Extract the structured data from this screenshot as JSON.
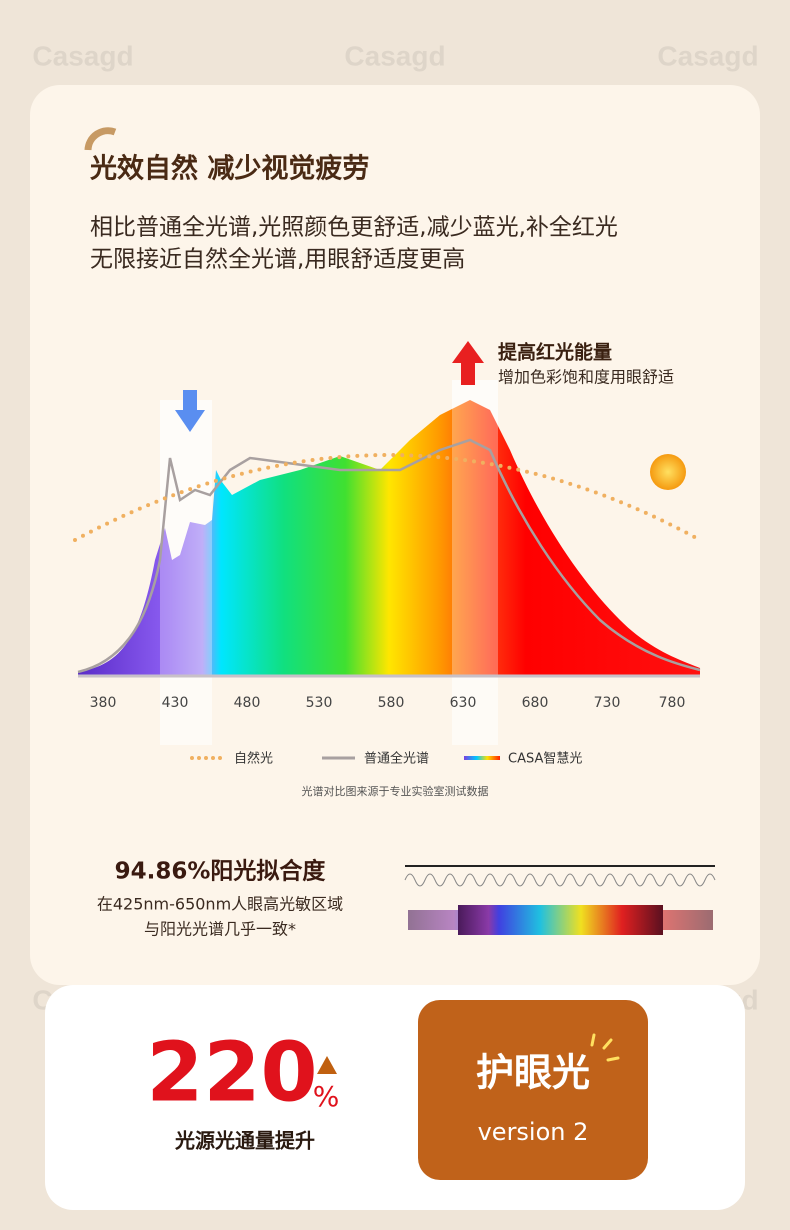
{
  "watermark": "Casagd",
  "header": {
    "title": "光效自然 减少视觉疲劳",
    "subtitle": [
      "相比普通全光谱,光照颜色更舒适,减少蓝光,补全红光",
      "无限接近自然全光谱,用眼舒适度更高"
    ]
  },
  "spectrum": {
    "callout": {
      "title": "提高红光能量",
      "text": "增加色彩饱和度用眼舒适"
    },
    "x_labels": [
      380,
      430,
      480,
      530,
      580,
      630,
      680,
      730,
      780
    ],
    "legend": [
      "自然光",
      "普通全光谱",
      "CASA智慧光"
    ],
    "note": "光谱对比图来源于专业实验室测试数据"
  },
  "fit": {
    "title": "94.86%阳光拟合度",
    "lines": [
      "在425nm-650nm人眼高光敏区域",
      "与阳光光谱几乎一致*"
    ]
  },
  "stat": {
    "value": 220,
    "unit": "%",
    "label": "光源光通量提升"
  },
  "badge": {
    "title": "护眼光",
    "version": "version 2"
  }
}
